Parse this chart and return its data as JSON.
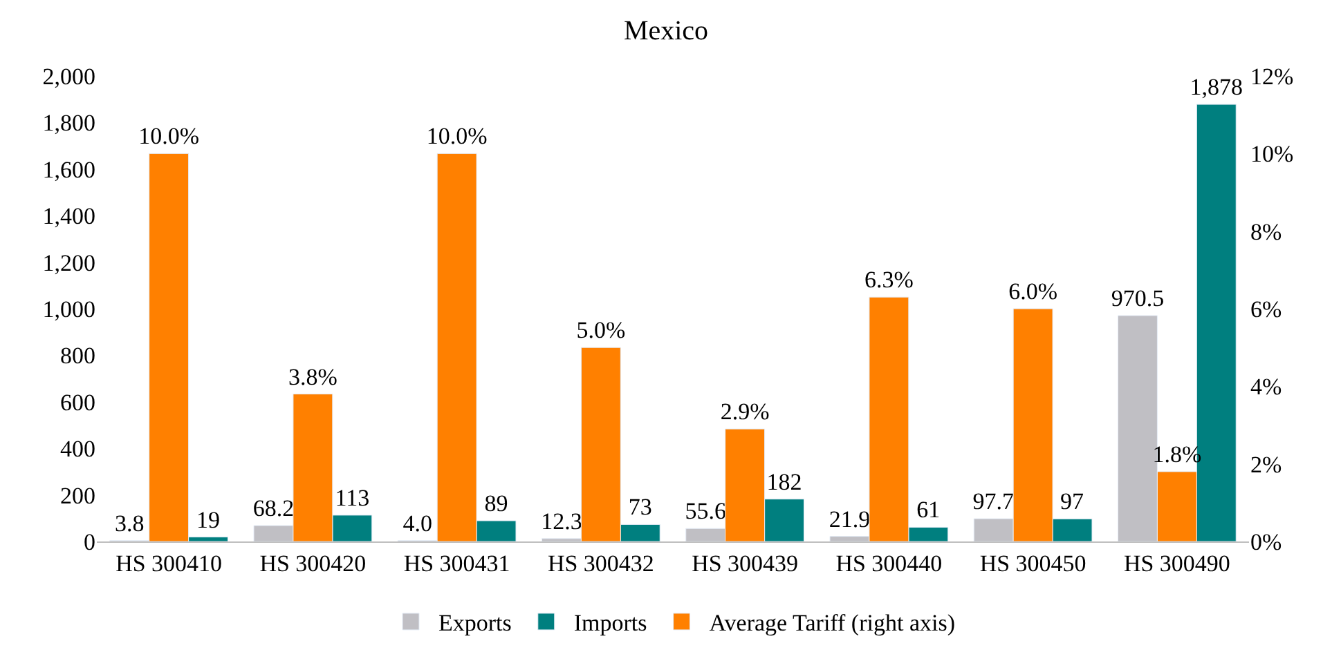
{
  "chart_data": {
    "type": "bar",
    "title": "Mexico",
    "categories": [
      "HS 300410",
      "HS 300420",
      "HS 300431",
      "HS 300432",
      "HS 300439",
      "HS 300440",
      "HS 300450",
      "HS 300490"
    ],
    "series": [
      {
        "name": "Exports",
        "color": "#c0bfc4",
        "values": [
          3.8,
          68.2,
          4.0,
          12.3,
          55.6,
          21.9,
          97.7,
          970.5
        ],
        "value_labels": [
          "3.8",
          "68.2",
          "4.0",
          "12.3",
          "55.6",
          "21.9",
          "97.7",
          "970.5"
        ]
      },
      {
        "name": "Average Tariff (right axis)",
        "color": "#ff8000",
        "axis": "y2",
        "values": [
          10.0,
          3.8,
          10.0,
          5.0,
          2.9,
          6.3,
          6.0,
          1.8
        ],
        "value_labels": [
          "10.0%",
          "3.8%",
          "10.0%",
          "5.0%",
          "2.9%",
          "6.3%",
          "6.0%",
          "1.8%"
        ]
      },
      {
        "name": "Imports",
        "color": "#007f7f",
        "values": [
          19,
          113,
          89,
          73,
          182,
          61,
          97,
          1878
        ],
        "value_labels": [
          "19",
          "113",
          "89",
          "73",
          "182",
          "61",
          "97",
          "1,878"
        ]
      }
    ],
    "ylim": [
      0,
      2000
    ],
    "yticks": [
      0,
      {
        "value": 200,
        "label": "200"
      },
      {
        "value": 400,
        "label": "400"
      },
      {
        "value": 600,
        "label": "600"
      },
      {
        "value": 800,
        "label": "800"
      },
      {
        "value": 1000,
        "label": "1,000"
      },
      {
        "value": 1200,
        "label": "1,200"
      },
      {
        "value": 1400,
        "label": "1,400"
      },
      {
        "value": 1600,
        "label": "1,600"
      },
      {
        "value": 1800,
        "label": "1,800"
      },
      {
        "value": 2000,
        "label": "2,000"
      }
    ],
    "y2lim": [
      0,
      12
    ],
    "y2ticks": [
      {
        "value": 0,
        "label": "0%"
      },
      {
        "value": 2,
        "label": "2%"
      },
      {
        "value": 4,
        "label": "4%"
      },
      {
        "value": 6,
        "label": "6%"
      },
      {
        "value": 8,
        "label": "8%"
      },
      {
        "value": 10,
        "label": "10%"
      },
      {
        "value": 12,
        "label": "12%"
      }
    ],
    "legend": "bottom"
  }
}
